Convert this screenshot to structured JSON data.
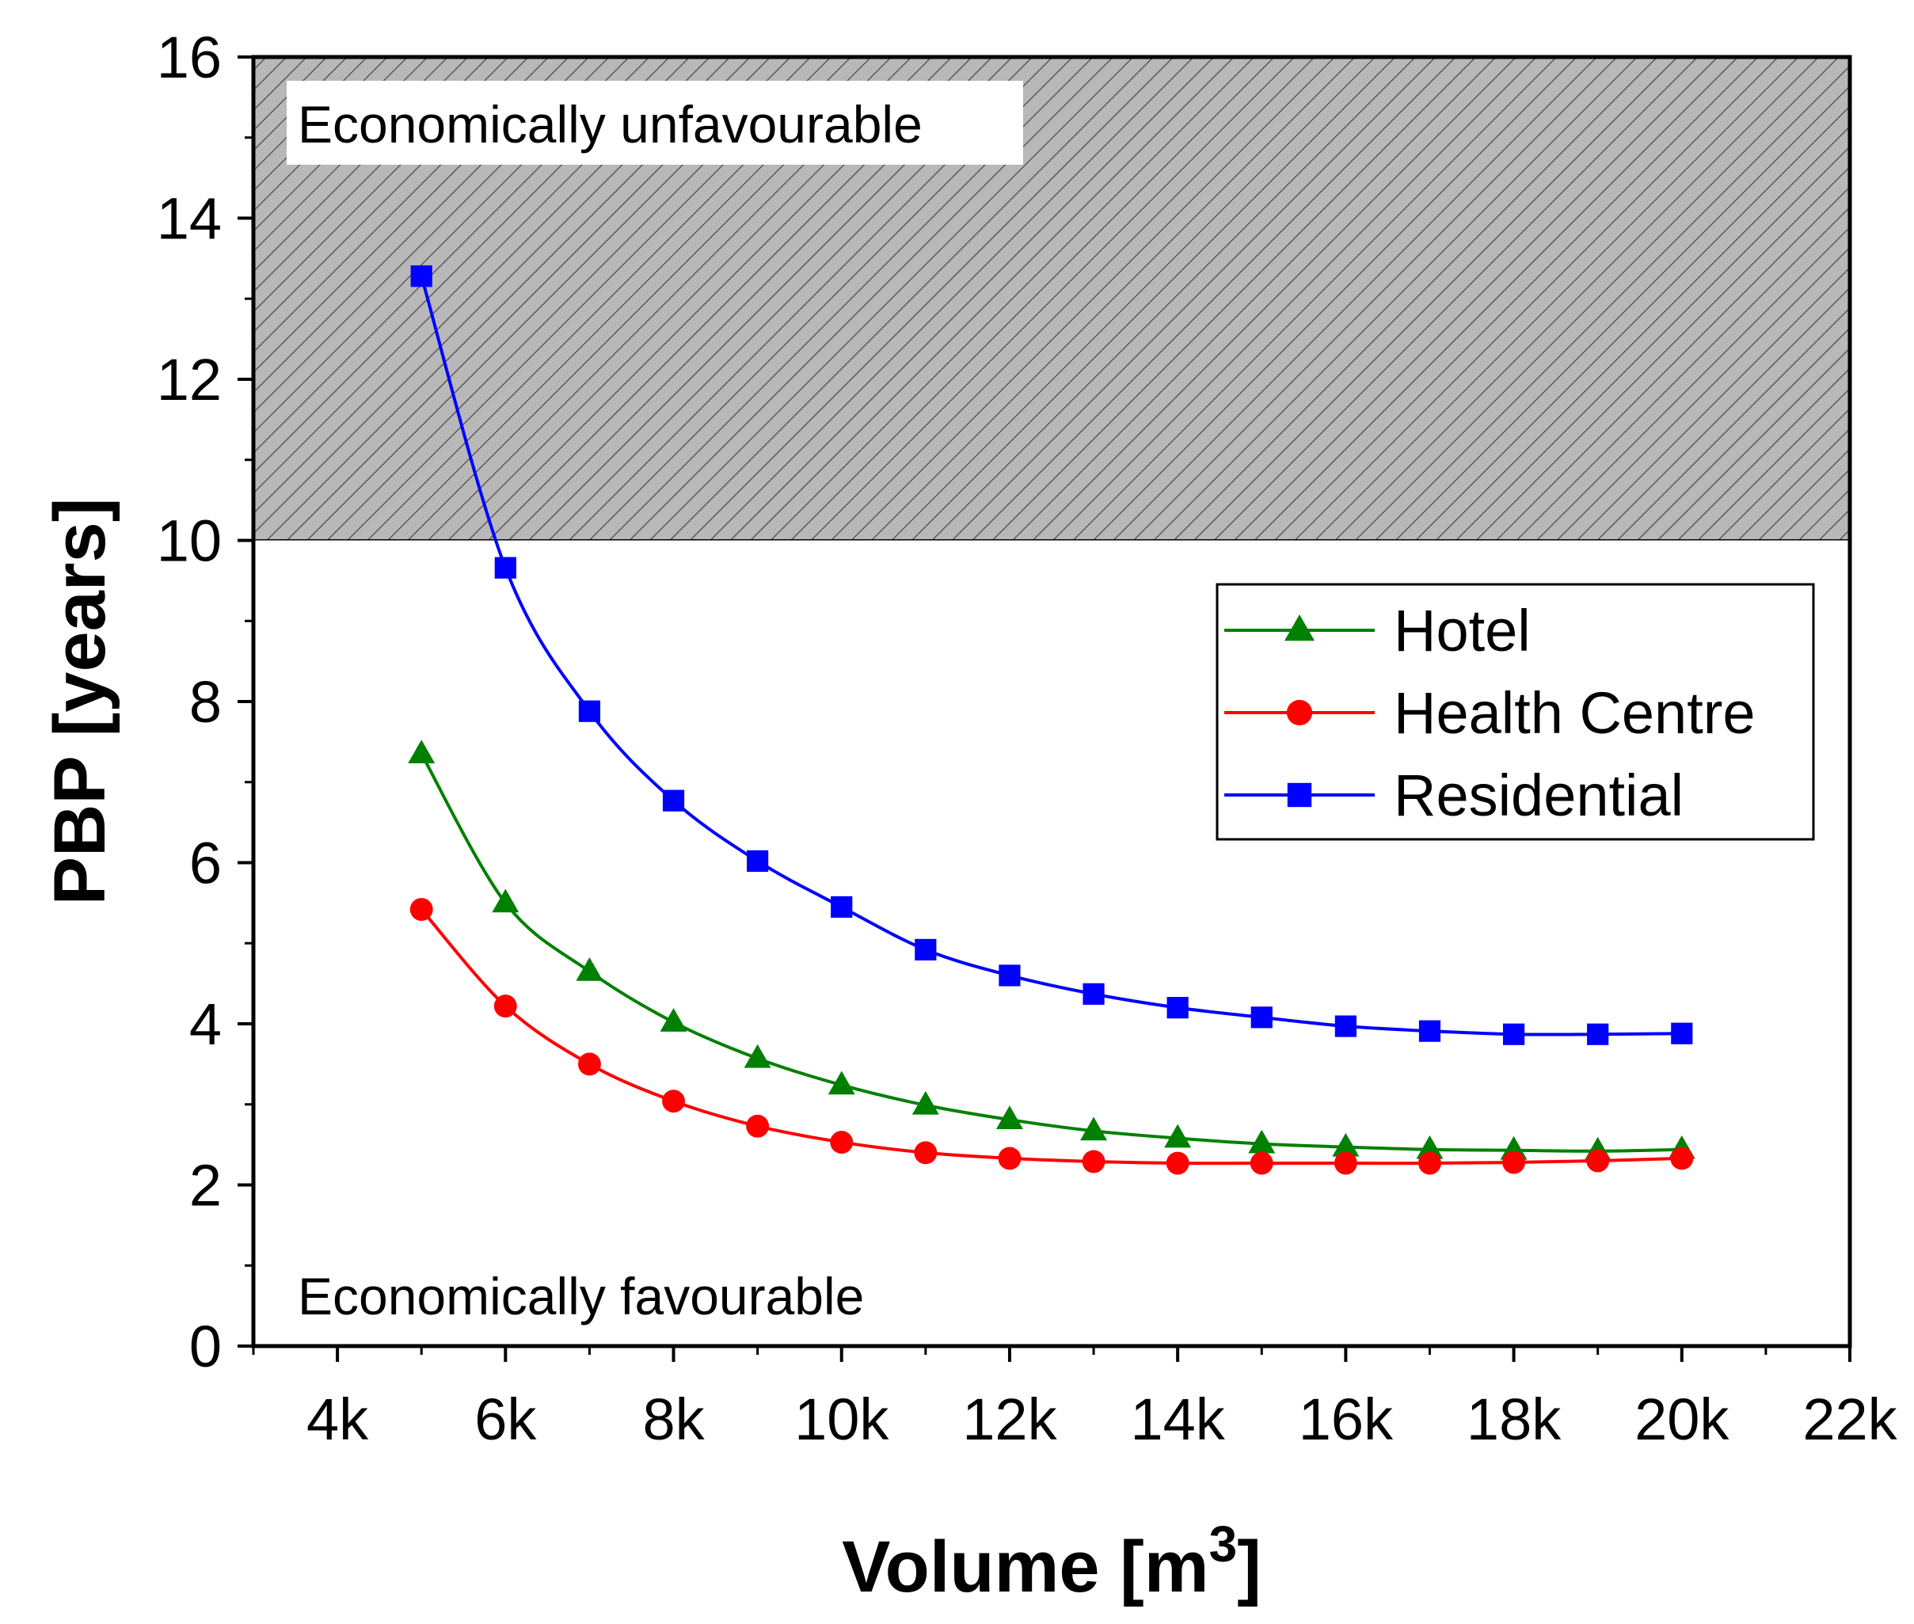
{
  "chart_data": {
    "type": "line",
    "xlabel": "Volume [m",
    "xlabel_sup": "3",
    "xlabel_end": "]",
    "ylabel": "PBP [years]",
    "xlim": [
      3000,
      22000
    ],
    "ylim": [
      0,
      16
    ],
    "x_ticks": [
      4000,
      6000,
      8000,
      10000,
      12000,
      14000,
      16000,
      18000,
      20000,
      22000
    ],
    "x_tick_labels": [
      "4k",
      "6k",
      "8k",
      "10k",
      "12k",
      "14k",
      "16k",
      "18k",
      "20k",
      "22k"
    ],
    "y_ticks": [
      0,
      2,
      4,
      6,
      8,
      10,
      12,
      14,
      16
    ],
    "y_tick_labels": [
      "0",
      "2",
      "4",
      "6",
      "8",
      "10",
      "12",
      "14",
      "16"
    ],
    "grid": false,
    "legend_position": "right",
    "regions": [
      {
        "label": "Economically unfavourable",
        "y_from": 10,
        "y_to": 16,
        "fill": "#b8b8b8",
        "hatch": true
      },
      {
        "label": "Economically favourable",
        "y_from": 0,
        "y_to": 10,
        "fill": "#ffffff",
        "hatch": false
      }
    ],
    "x": [
      5000,
      6000,
      7000,
      8000,
      9000,
      10000,
      11000,
      12000,
      13000,
      14000,
      15000,
      16000,
      17000,
      18000,
      19000,
      20000
    ],
    "series": [
      {
        "name": "Hotel",
        "color": "#008000",
        "marker": "triangle",
        "values": [
          7.35,
          5.5,
          4.65,
          4.02,
          3.57,
          3.24,
          2.99,
          2.81,
          2.67,
          2.58,
          2.51,
          2.47,
          2.44,
          2.43,
          2.42,
          2.44
        ]
      },
      {
        "name": "Health Centre",
        "color": "#ff0000",
        "marker": "circle",
        "values": [
          5.42,
          4.22,
          3.5,
          3.04,
          2.73,
          2.53,
          2.4,
          2.33,
          2.29,
          2.27,
          2.27,
          2.27,
          2.27,
          2.28,
          2.3,
          2.33
        ]
      },
      {
        "name": "Residential",
        "color": "#0000ff",
        "marker": "square",
        "values": [
          13.28,
          9.66,
          7.88,
          6.77,
          6.02,
          5.45,
          4.92,
          4.6,
          4.37,
          4.2,
          4.08,
          3.97,
          3.91,
          3.87,
          3.87,
          3.88
        ]
      }
    ]
  }
}
